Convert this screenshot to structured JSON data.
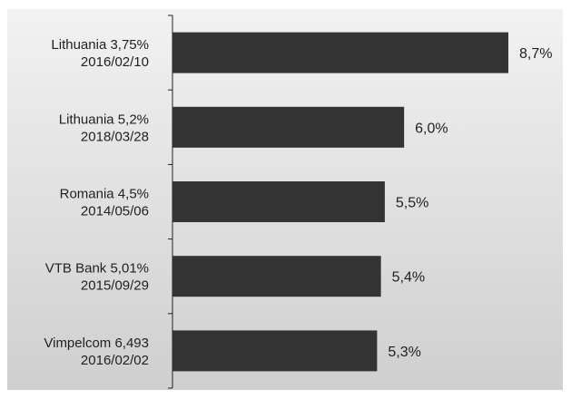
{
  "chart_data": {
    "type": "bar",
    "orientation": "horizontal",
    "categories": [
      {
        "name": "Lithuania 3,75%",
        "date": "2016/02/10"
      },
      {
        "name": "Lithuania 5,2%",
        "date": "2018/03/28"
      },
      {
        "name": "Romania 4,5%",
        "date": "2014/05/06"
      },
      {
        "name": "VTB Bank 5,01%",
        "date": "2015/09/29"
      },
      {
        "name": "Vimpelcom  6,493",
        "date": "2016/02/02"
      }
    ],
    "values": [
      8.7,
      6.0,
      5.5,
      5.4,
      5.3
    ],
    "value_labels": [
      "8,7%",
      "6,0%",
      "5,5%",
      "5,4%",
      "5,3%"
    ],
    "xlim": [
      0,
      9.5
    ],
    "grid": false,
    "legend": "none",
    "colors": {
      "bar": "#333333",
      "background_top": "#f2f2f2",
      "background_bottom": "#cfcfcf",
      "axis": "#222222",
      "text": "#222222"
    }
  }
}
